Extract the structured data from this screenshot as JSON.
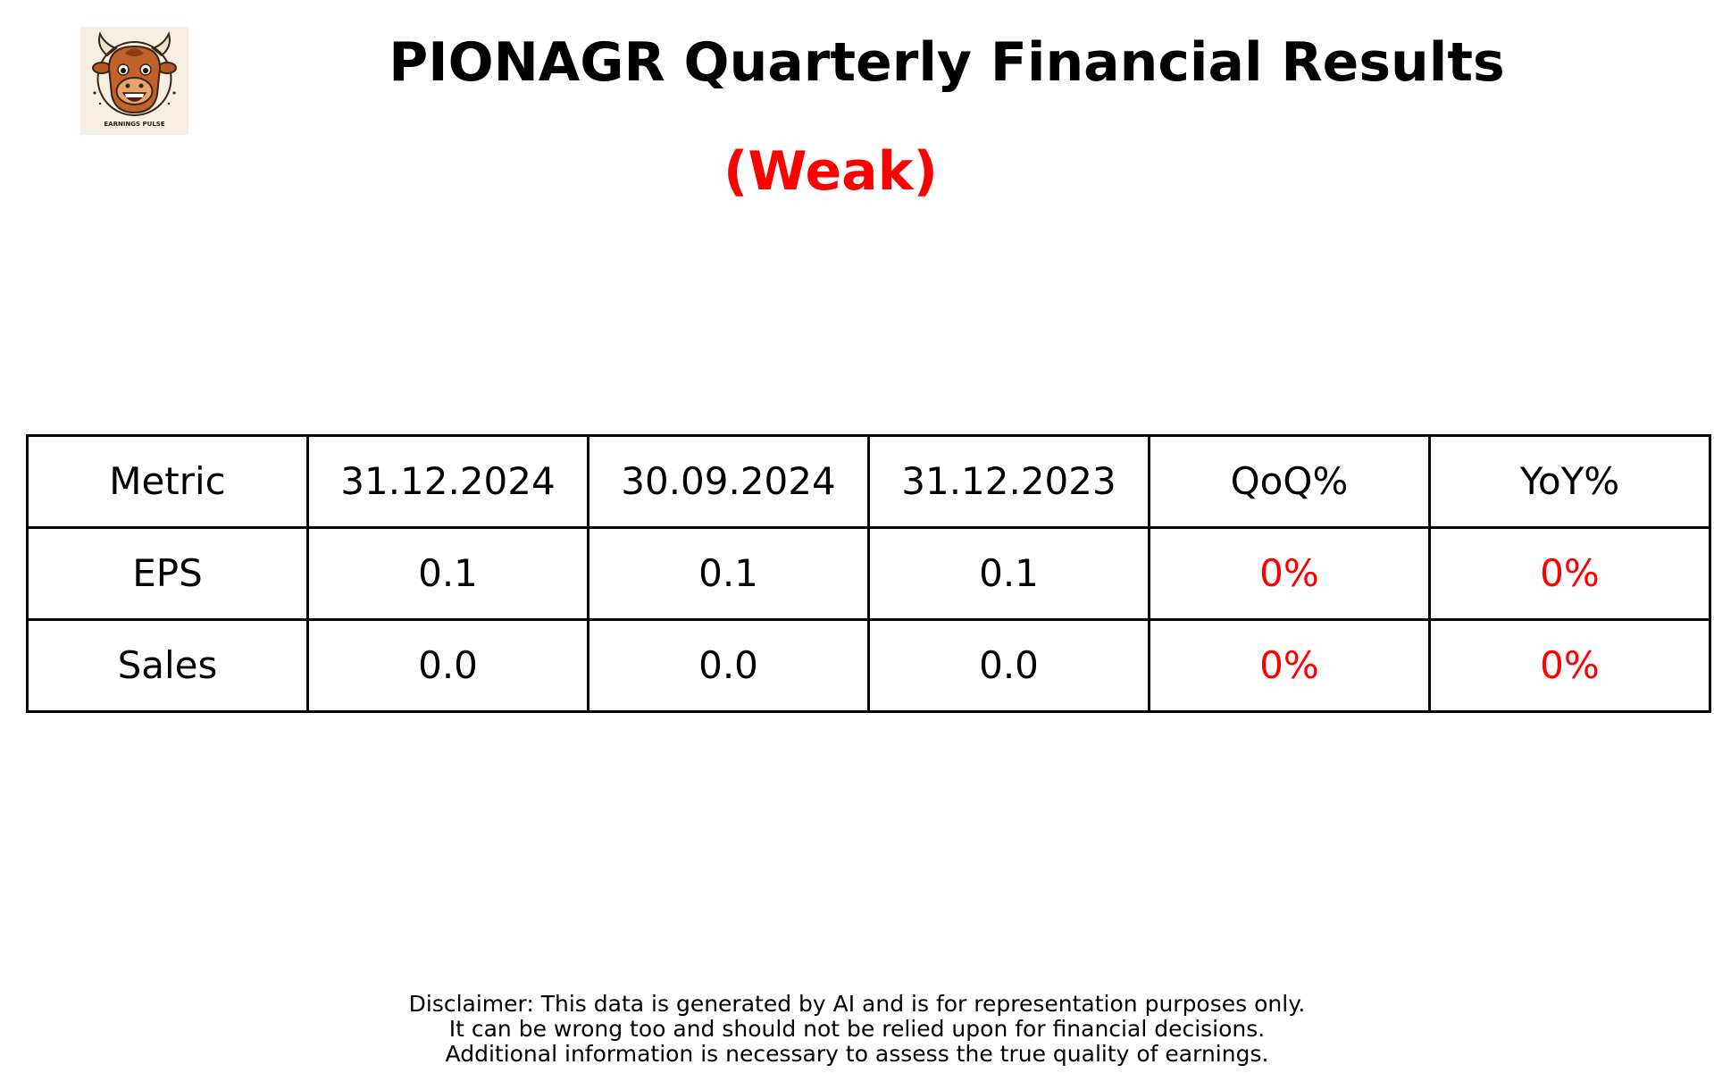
{
  "header": {
    "title": "PIONAGR Quarterly Financial Results",
    "rating": "(Weak)",
    "rating_color": "#ff0000"
  },
  "logo": {
    "icon": "bull-mascot-icon",
    "caption": "EARNINGS PULSE"
  },
  "chart_data": {
    "type": "table",
    "columns": [
      "Metric",
      "31.12.2024",
      "30.09.2024",
      "31.12.2023",
      "QoQ%",
      "YoY%"
    ],
    "rows": [
      [
        "EPS",
        "0.1",
        "0.1",
        "0.1",
        "0%",
        "0%"
      ],
      [
        "Sales",
        "0.0",
        "0.0",
        "0.0",
        "0%",
        "0%"
      ]
    ],
    "change_color": "#ff0000"
  },
  "disclaimer": {
    "lines": [
      "Disclaimer: This data is generated by AI and is for representation purposes only.",
      "It can be wrong too and should not be relied upon for financial decisions.",
      "Additional information is necessary to assess the true quality of earnings."
    ]
  }
}
